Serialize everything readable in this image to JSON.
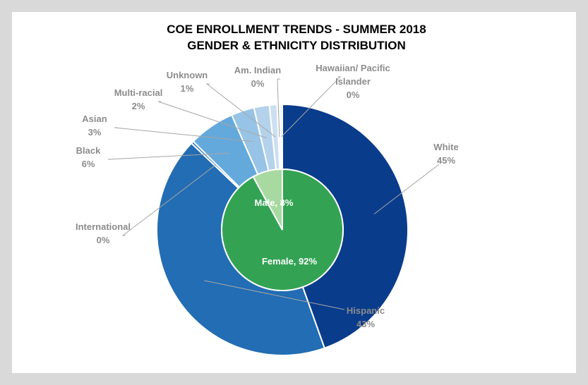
{
  "chart_data": {
    "type": "pie",
    "title_line1": "COE ENROLLMENT TRENDS - SUMMER 2018",
    "title_line2": "GENDER & ETHNICITY DISTRIBUTION",
    "outer_ring": [
      {
        "name": "White",
        "value": 45,
        "label": "45%",
        "color": "#0a3c8c"
      },
      {
        "name": "Hispanic",
        "value": 43,
        "label": "43%",
        "color": "#226db3"
      },
      {
        "name": "International",
        "value": 0,
        "label": "0%",
        "color": "#2e7cc4"
      },
      {
        "name": "Black",
        "value": 6,
        "label": "6%",
        "color": "#64a9dc"
      },
      {
        "name": "Asian",
        "value": 3,
        "label": "3%",
        "color": "#97c4e6"
      },
      {
        "name": "Multi-racial",
        "value": 2,
        "label": "2%",
        "color": "#b4d2ec"
      },
      {
        "name": "Unknown",
        "value": 1,
        "label": "1%",
        "color": "#cddff1"
      },
      {
        "name": "Am. Indian",
        "value": 0,
        "label": "0%",
        "color": "#dde9f5"
      },
      {
        "name": "Hawaiian/ Pacific Islander",
        "value": 0,
        "label": "0%",
        "color": "#e8f0f8"
      }
    ],
    "inner_pie": [
      {
        "name": "Female",
        "value": 92,
        "label": "Female, 92%",
        "color": "#33a353"
      },
      {
        "name": "Male",
        "value": 8,
        "label": "Male, 8%",
        "color": "#a8d9a0"
      }
    ],
    "legend": "none"
  }
}
